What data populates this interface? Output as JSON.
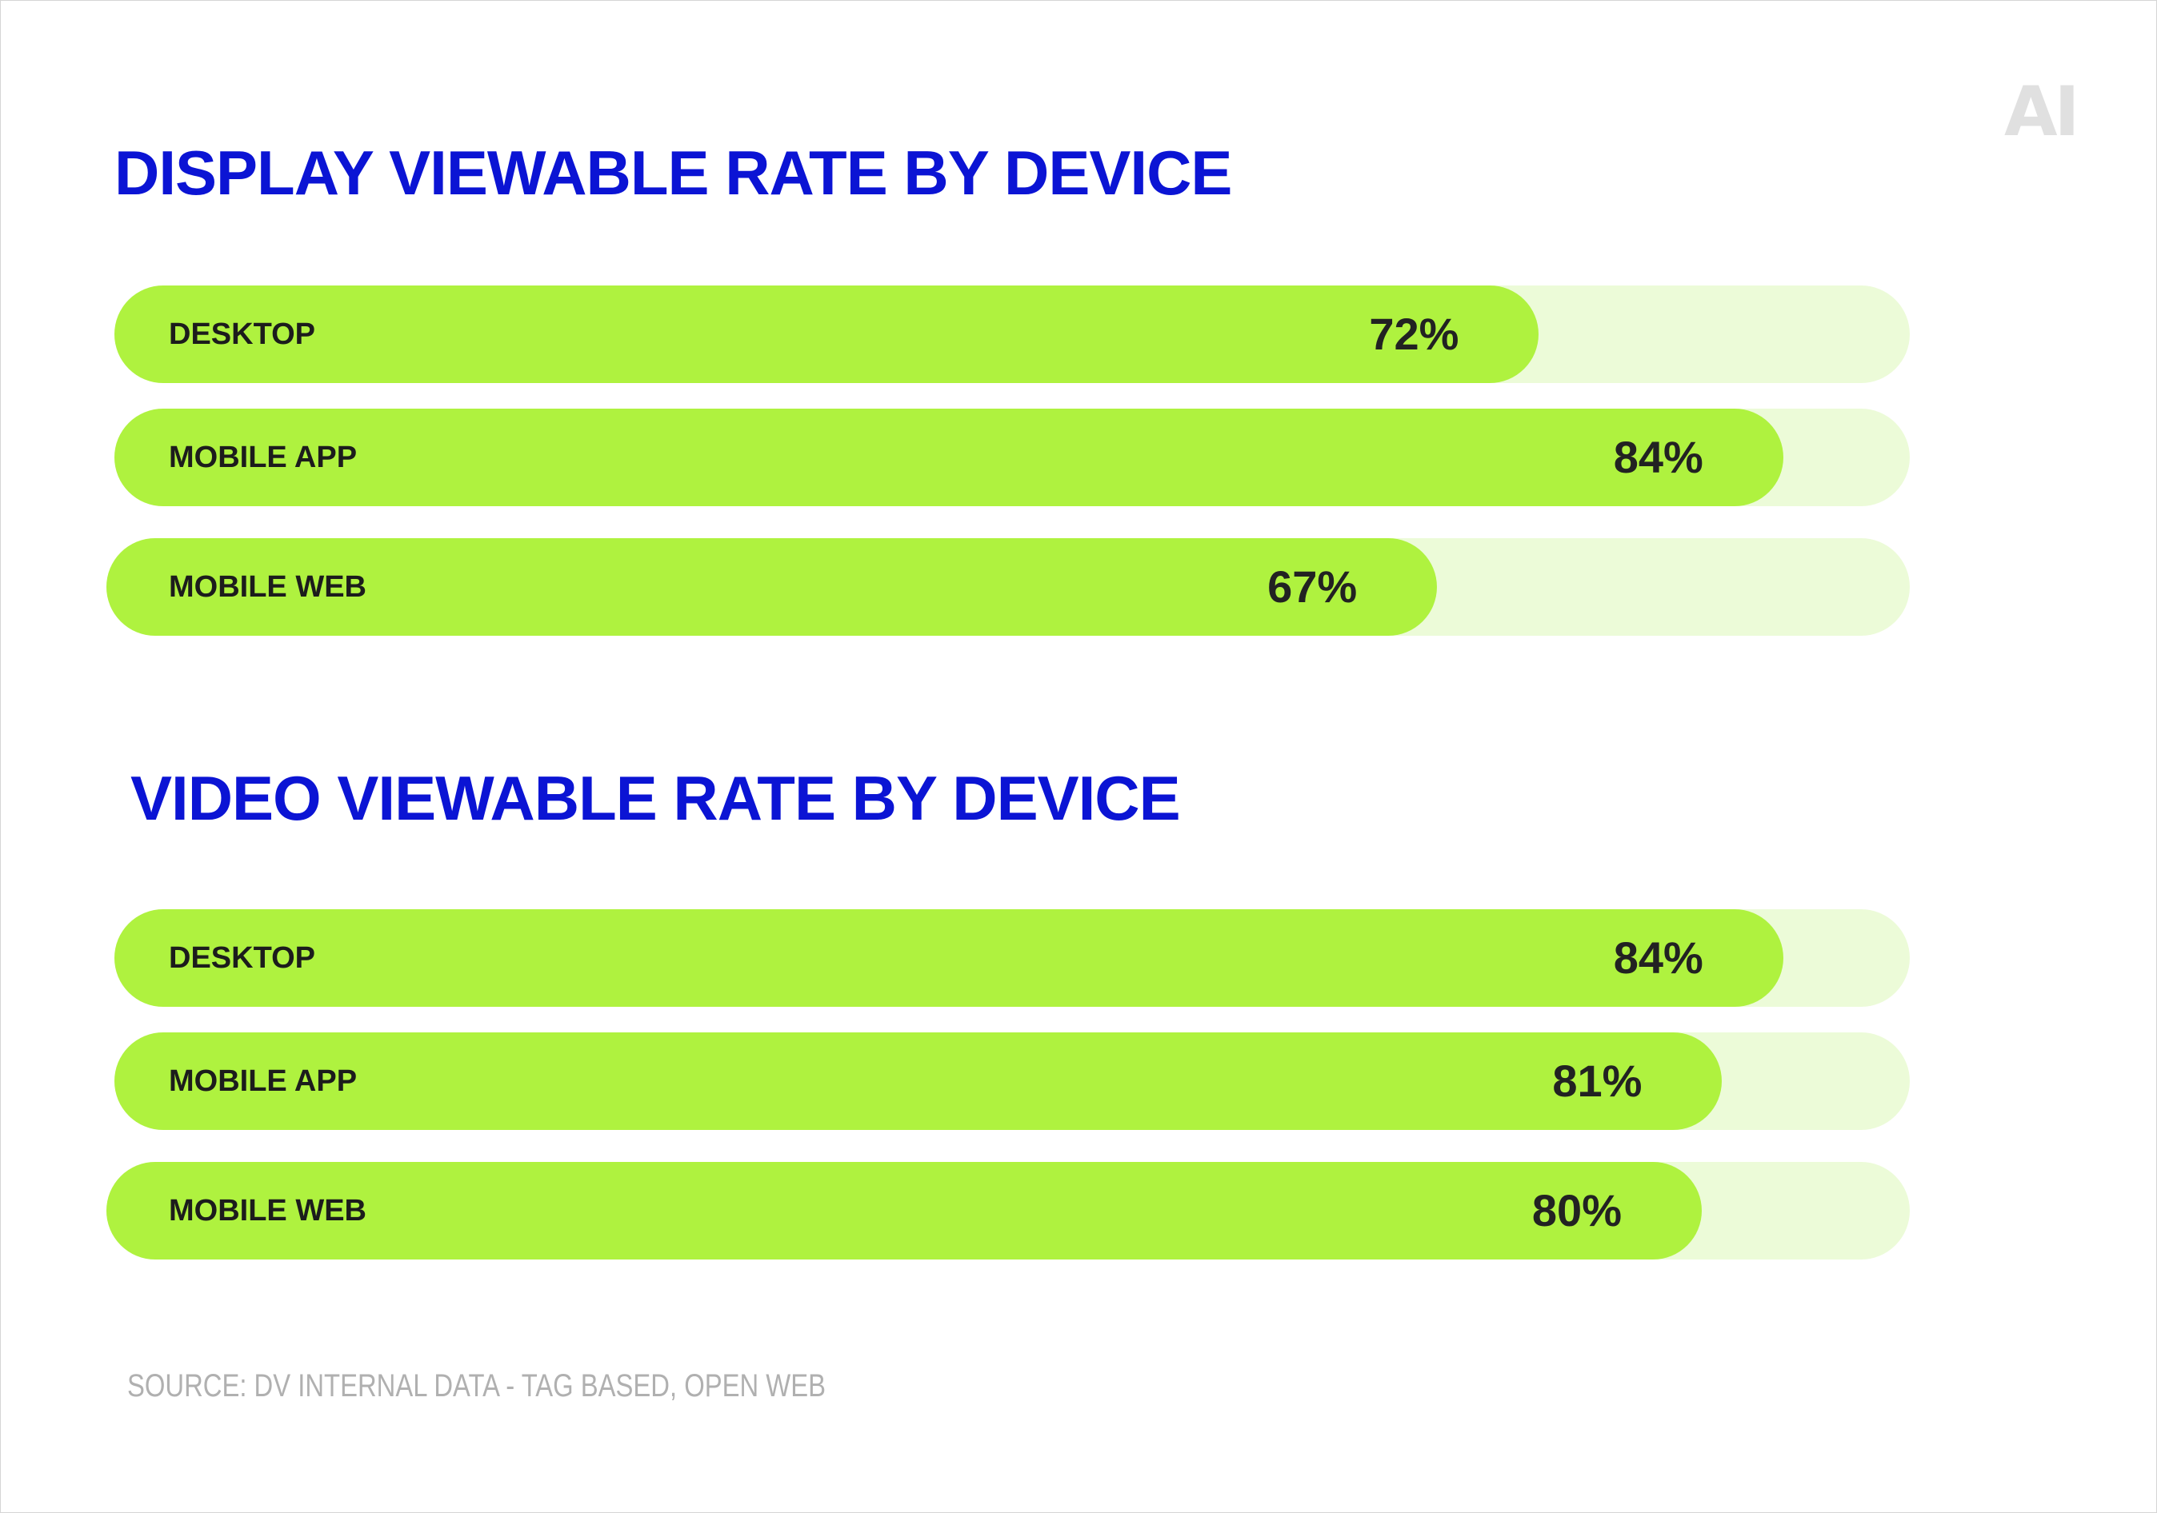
{
  "logo_text": "AI",
  "source": "SOURCE: DV INTERNAL DATA - TAG BASED, OPEN WEB",
  "colors": {
    "title": "#0b14d4",
    "fill": "#aff23f",
    "track": "#ecfbd8",
    "label": "#1c1c1c"
  },
  "chart_data": [
    {
      "type": "bar",
      "orientation": "horizontal",
      "title": "DISPLAY VIEWABLE RATE BY DEVICE",
      "categories": [
        "DESKTOP",
        "MOBILE APP",
        "MOBILE WEB"
      ],
      "values": [
        72,
        84,
        67
      ],
      "value_labels": [
        "72%",
        "84%",
        "67%"
      ],
      "xlim": [
        0,
        100
      ],
      "unit": "%"
    },
    {
      "type": "bar",
      "orientation": "horizontal",
      "title": "VIDEO VIEWABLE RATE BY DEVICE",
      "categories": [
        "DESKTOP",
        "MOBILE APP",
        "MOBILE WEB"
      ],
      "values": [
        84,
        81,
        80
      ],
      "value_labels": [
        "84%",
        "81%",
        "80%"
      ],
      "xlim": [
        0,
        100
      ],
      "unit": "%"
    }
  ]
}
